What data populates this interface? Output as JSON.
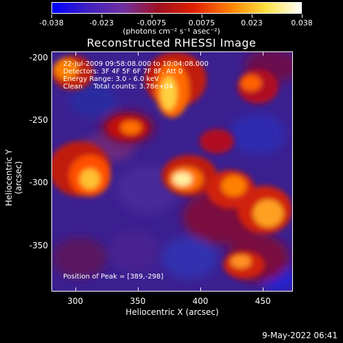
{
  "colorbar": {
    "ticks": [
      "-0.038",
      "-0.023",
      "-0.0075",
      "0.0075",
      "0.023",
      "0.038"
    ],
    "units": "(photons cm⁻² s⁻¹ asec⁻²)",
    "colors": [
      "#0000ff",
      "#4020c0",
      "#7030a0",
      "#a01020",
      "#e02000",
      "#ff8000",
      "#ffe040",
      "#ffffff"
    ]
  },
  "title": "Reconstructed RHESSI Image",
  "info": {
    "line1": "22-Jul-2009 09:58:08.000 to 10:04:08.000",
    "line2": "Detectors: 3F 4F 5F 6F 7F 8F, Att 0",
    "line3": "Energy Range: 3.0 - 6.0 keV",
    "line4": "Clean     Total counts: 3.78e+04",
    "peak": "Position of Peak = [389,-298]"
  },
  "axes": {
    "xlabel": "Heliocentric X (arcsec)",
    "ylabel": "Heliocentric Y (arcsec)",
    "xticks": [
      "300",
      "350",
      "400",
      "450"
    ],
    "yticks": [
      "-200",
      "-250",
      "-300",
      "-350"
    ],
    "xlim": [
      281,
      474
    ],
    "ylim": [
      -387,
      -195
    ]
  },
  "timestamp": "9-May-2022 06:41"
}
